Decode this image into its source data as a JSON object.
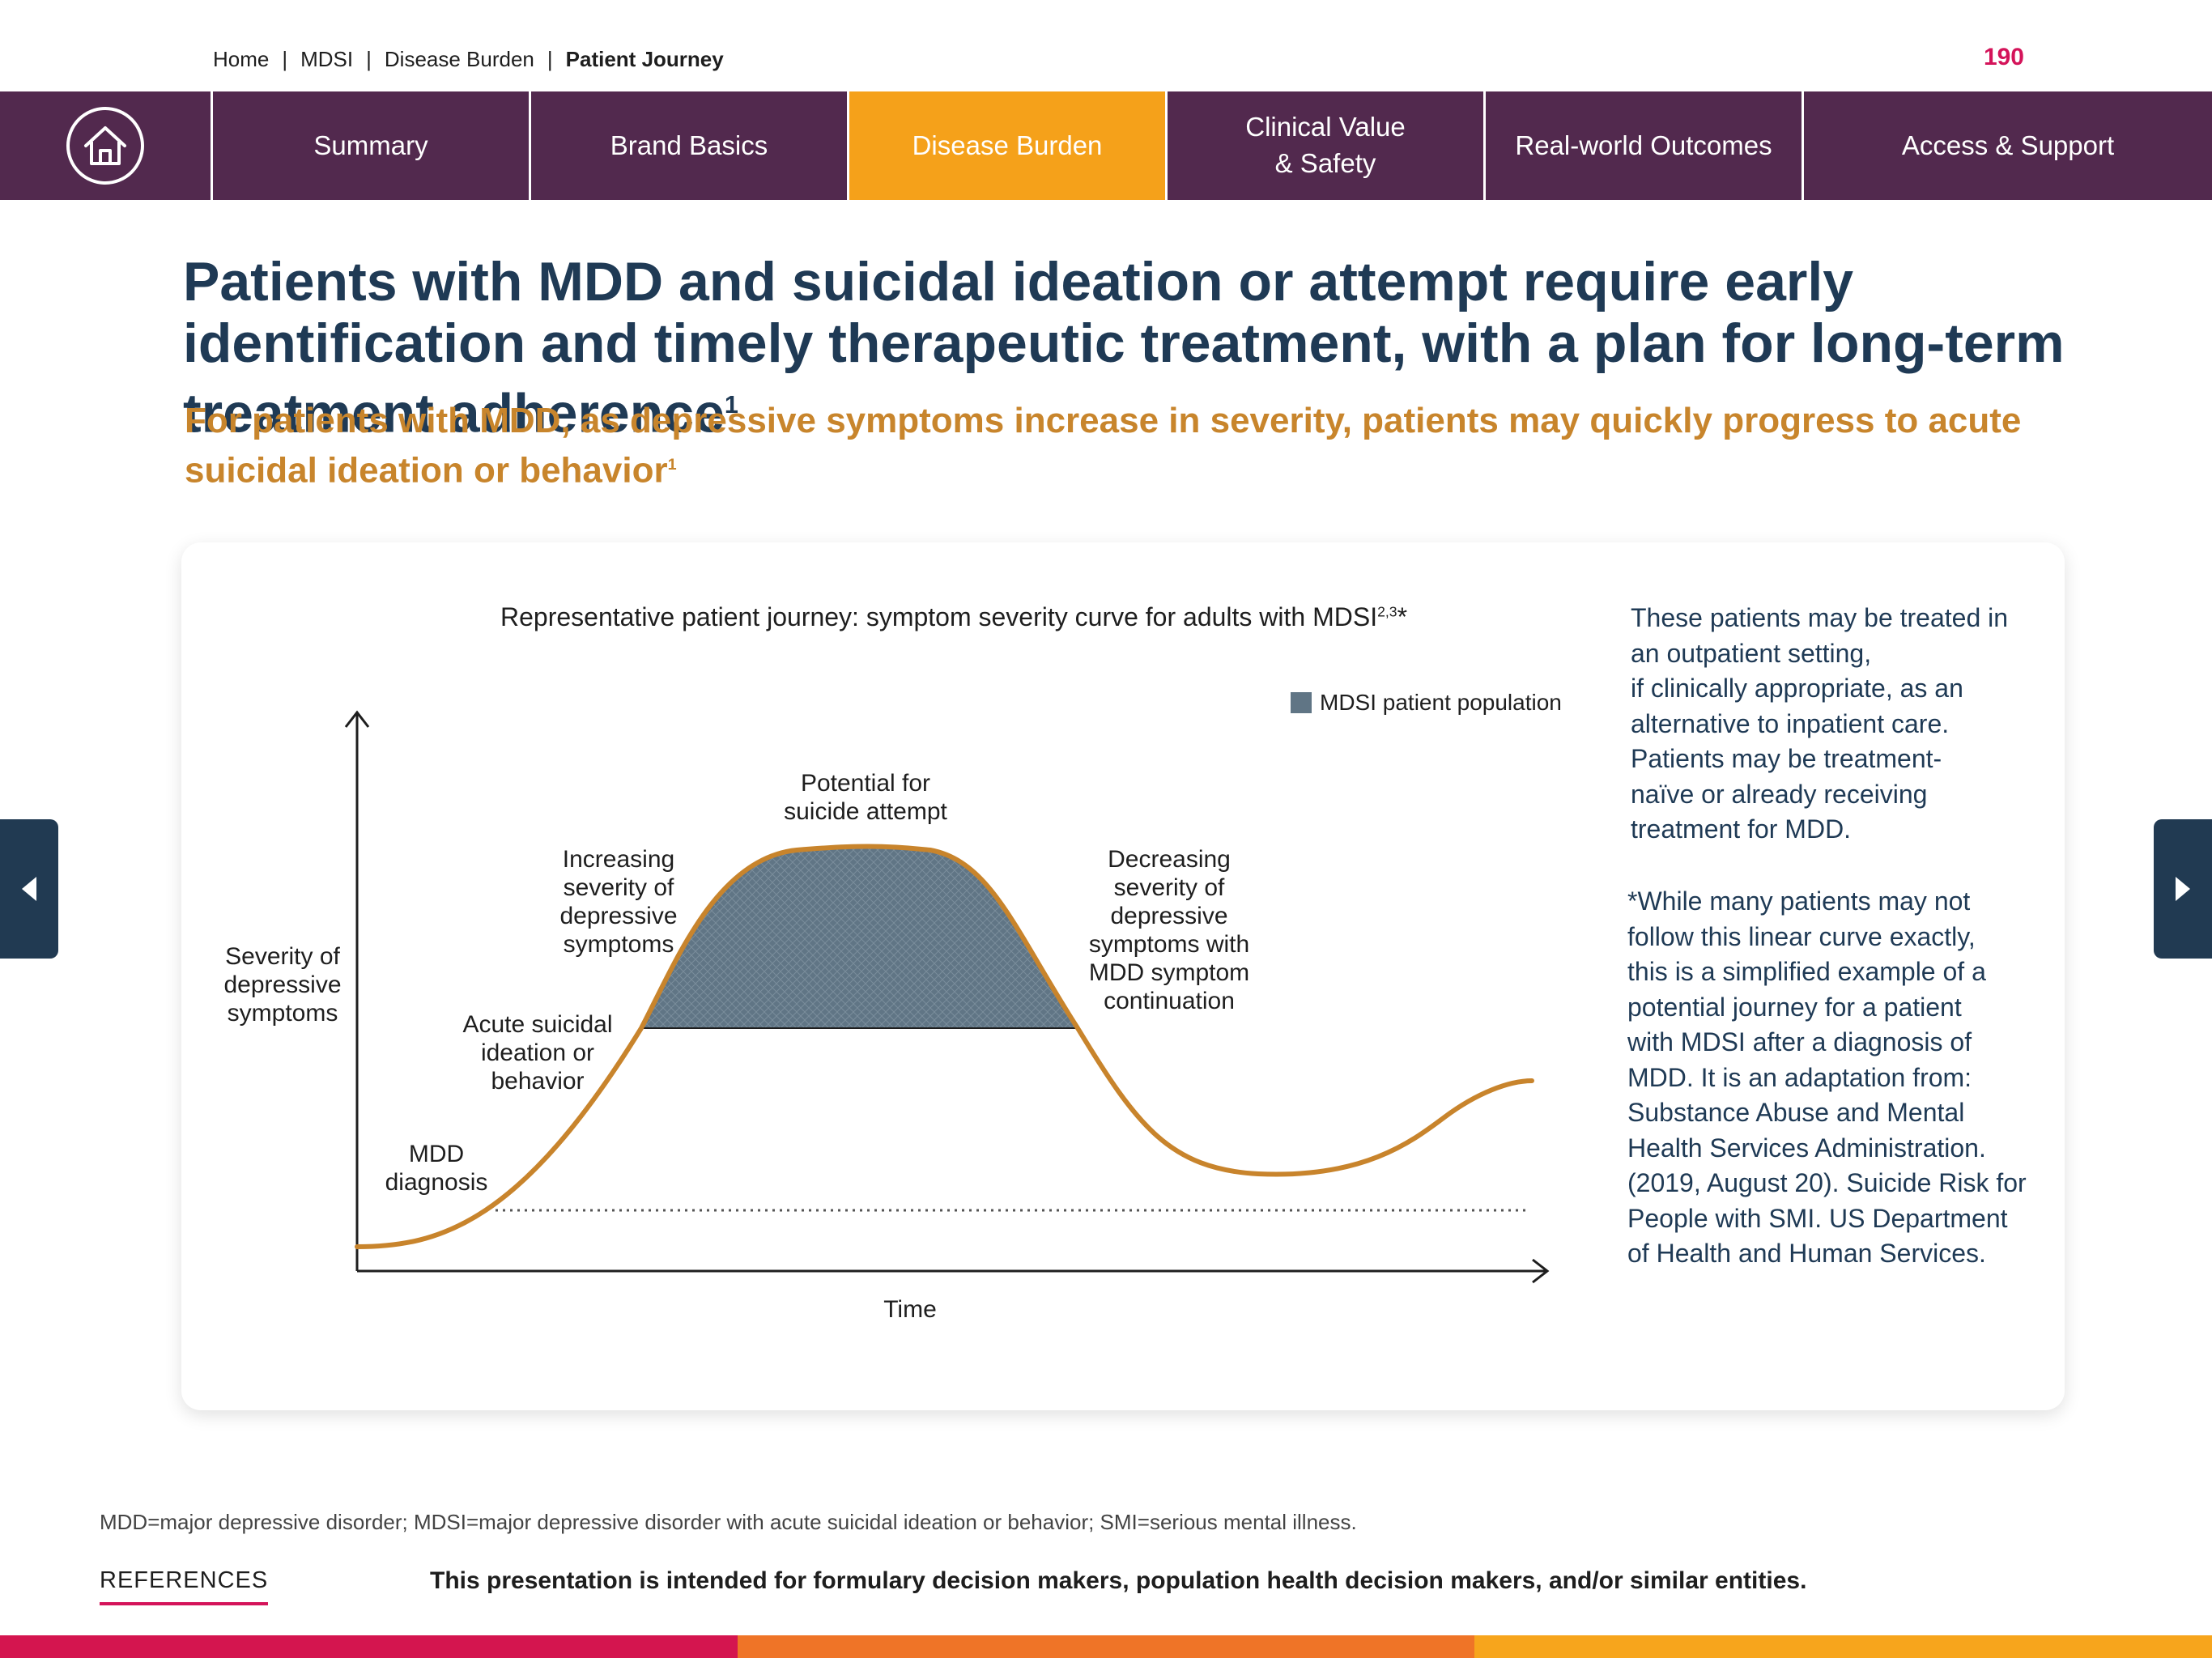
{
  "breadcrumb": {
    "home": "Home",
    "mdsi": "MDSI",
    "section": "Disease Burden",
    "current": "Patient Journey",
    "separator": "|"
  },
  "page_number": "190",
  "nav": {
    "home_icon": "house-icon",
    "tabs": [
      {
        "label": "Summary",
        "active": false
      },
      {
        "label": "Brand Basics",
        "active": false
      },
      {
        "label": "Disease Burden",
        "active": true
      },
      {
        "label": "Clinical Value\n& Safety",
        "active": false
      },
      {
        "label": "Real-world Outcomes",
        "active": false
      },
      {
        "label": "Access & Support",
        "active": false
      }
    ]
  },
  "headline": {
    "text": "Patients with MDD and suicidal ideation or attempt require early identification and timely therapeutic treatment, with a plan for long-term treatment adherence",
    "ref": "1"
  },
  "subhead": {
    "text": "For patients with MDD, as depressive symptoms increase in severity, patients may quickly progress to acute suicidal ideation or behavior",
    "ref": "1"
  },
  "chart": {
    "title": "Representative patient journey: symptom severity curve for adults with MDSI",
    "title_refs": "2,3",
    "title_mark": "*",
    "legend": "MDSI patient population",
    "y_axis_label": "Severity of\ndepressive\nsymptoms",
    "x_axis_label": "Time",
    "annotations": {
      "mdd_diagnosis": "MDD\ndiagnosis",
      "acute": "Acute suicidal\nideation or\nbehavior",
      "increasing": "Increasing\nseverity of\ndepressive\nsymptoms",
      "potential": "Potential for\nsuicide attempt",
      "decreasing": "Decreasing\nseverity of\ndepressive\nsymptoms with\nMDD symptom\ncontinuation"
    }
  },
  "chart_data": {
    "type": "area",
    "title": "Representative patient journey: symptom severity curve for adults with MDSI",
    "xlabel": "Time",
    "ylabel": "Severity of depressive symptoms",
    "grid": false,
    "legend": "top-right",
    "series": [
      {
        "name": "MDSI patient population"
      }
    ]
  },
  "side_notes": {
    "setting": "These patients may be treated in\n an outpatient setting,\n if clinically appropriate, as an\n alternative to inpatient care.\n Patients may be treatment-\n naïve or already receiving\n treatment for MDD.",
    "footnote": "*While many patients may not\n follow this linear curve exactly,\n this is a simplified example of a\n potential journey for a patient\n with MDSI after a diagnosis of\n MDD. It is an adaptation from:\n Substance Abuse and Mental\n Health Services Administration.\n (2019, August 20). Suicide Risk for\n People with SMI. US Department\n of Health and Human Services."
  },
  "footer": {
    "abbreviations": "MDD=major depressive disorder; MDSI=major depressive disorder with acute suicidal ideation or behavior; SMI=serious mental illness.",
    "references_label": "REFERENCES",
    "disclaimer": "This presentation is intended for formulary decision makers, population health decision makers, and/or similar entities."
  },
  "colors": {
    "nav_bg": "#52294e",
    "nav_active": "#f5a11a",
    "headline": "#1f3a55",
    "subhead": "#c8852c",
    "curve": "#c8842c",
    "fill": "#607585",
    "accent": "#d4145a",
    "bottom_bar": [
      "#d4154f",
      "#ef7427",
      "#f7a51c"
    ]
  }
}
